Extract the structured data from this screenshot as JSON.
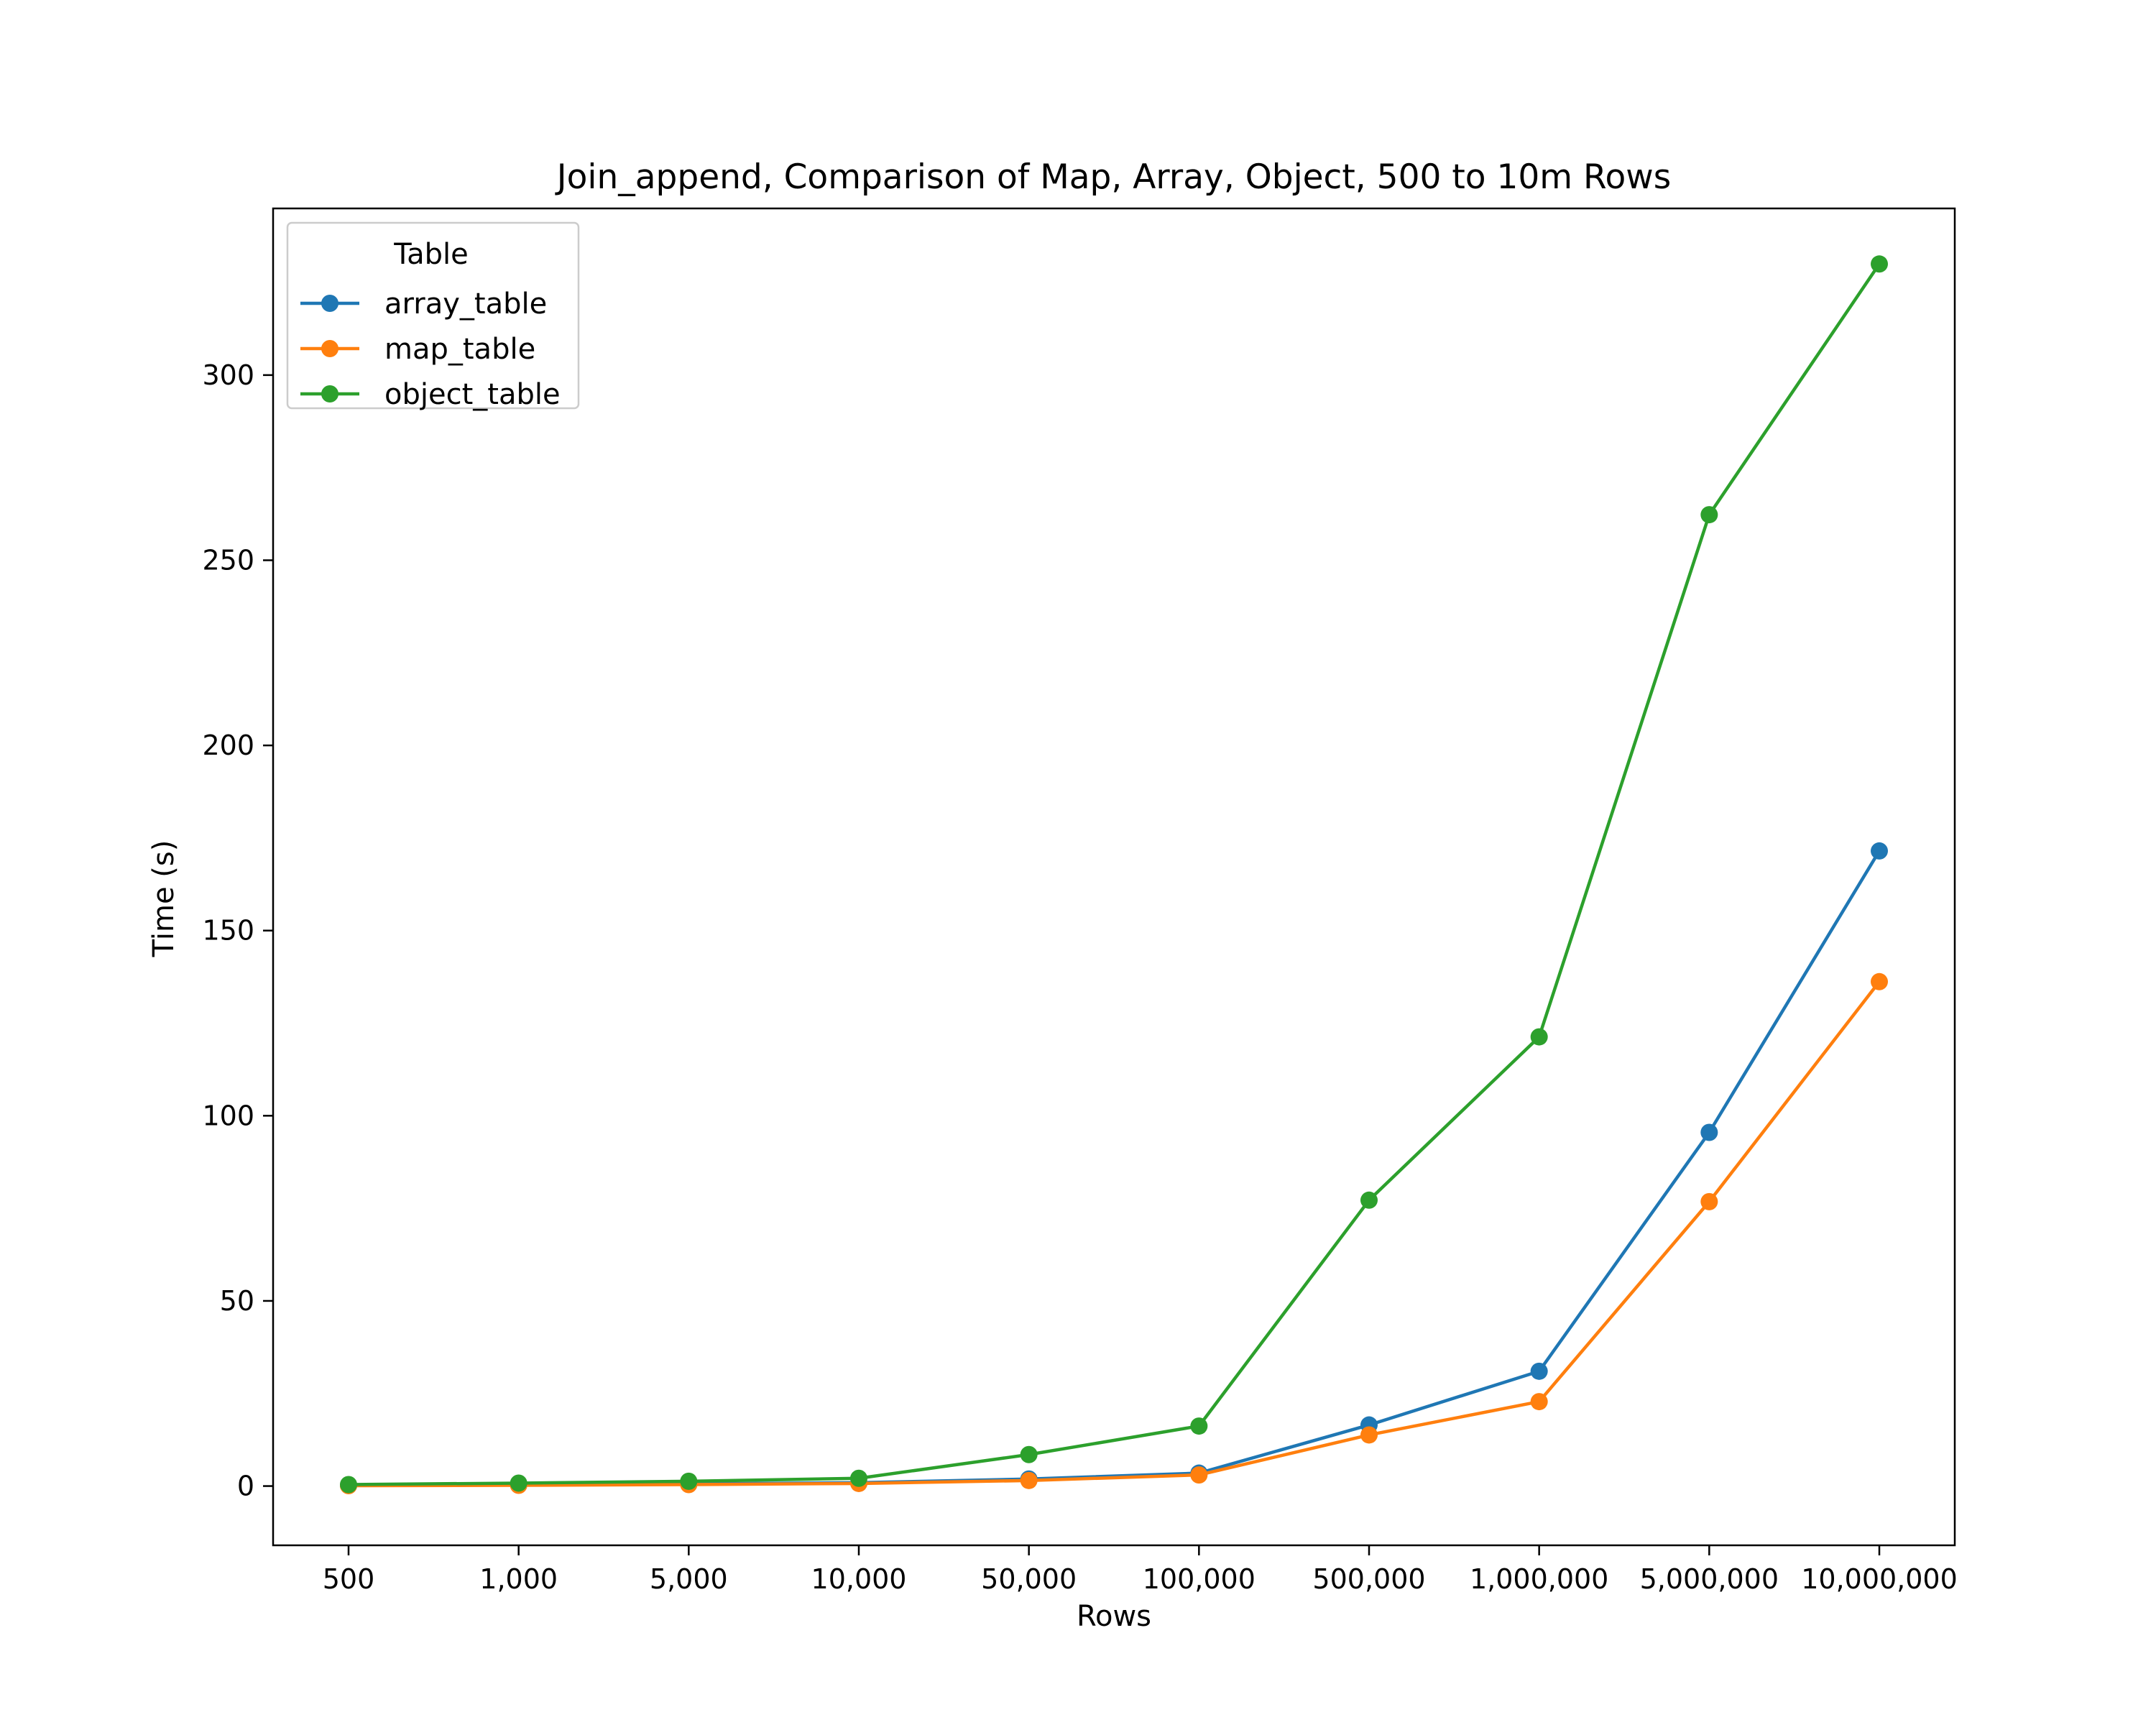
{
  "chart_data": {
    "type": "line",
    "title": "Join_append, Comparison of Map, Array, Object, 500 to 10m Rows",
    "xlabel": "Rows",
    "ylabel": "Time (s)",
    "categories": [
      "500",
      "1,000",
      "5,000",
      "10,000",
      "50,000",
      "100,000",
      "500,000",
      "1,000,000",
      "5,000,000",
      "10,000,000"
    ],
    "ylim": [
      -16,
      345
    ],
    "yticks": [
      "0",
      "50",
      "100",
      "150",
      "200",
      "250",
      "300"
    ],
    "grid": false,
    "legend": {
      "title": "Table",
      "position": "top-left"
    },
    "series": [
      {
        "name": "array_table",
        "color": "#1f77b4",
        "marker": "circle",
        "values": [
          0.2,
          0.3,
          0.6,
          0.9,
          1.9,
          3.5,
          16.5,
          31,
          95.5,
          171.5
        ]
      },
      {
        "name": "map_table",
        "color": "#ff7f0e",
        "marker": "circle",
        "values": [
          0.1,
          0.2,
          0.4,
          0.7,
          1.5,
          3.0,
          13.8,
          22.8,
          76.8,
          136.2
        ]
      },
      {
        "name": "object_table",
        "color": "#2ca02c",
        "marker": "circle",
        "values": [
          0.4,
          0.8,
          1.3,
          2.1,
          8.5,
          16.2,
          77.2,
          121.3,
          262.3,
          330.0
        ]
      }
    ]
  }
}
